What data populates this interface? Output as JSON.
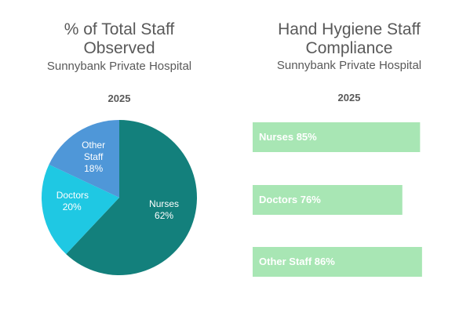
{
  "chart_data": [
    {
      "type": "pie",
      "title": "% of Total Staff Observed",
      "subtitle": "Sunnybank Private Hospital",
      "label": "2025",
      "categories": [
        "Nurses",
        "Doctors",
        "Other Staff"
      ],
      "values": [
        62,
        20,
        18
      ],
      "value_labels": [
        "62%",
        "20%",
        "18%"
      ],
      "colors": [
        "#13807c",
        "#1fc8e3",
        "#4f97d8"
      ]
    },
    {
      "type": "hbar",
      "title": "Hand Hygiene Staff Compliance",
      "subtitle": "Sunnybank Private Hospital",
      "label": "2025",
      "values": [
        85,
        76,
        86
      ],
      "value_labels": [
        "Nurses 85%",
        "Doctors 76%",
        "Other Staff 86%"
      ],
      "color": "#a8e6b4",
      "xlim": [
        0,
        100
      ]
    }
  ]
}
